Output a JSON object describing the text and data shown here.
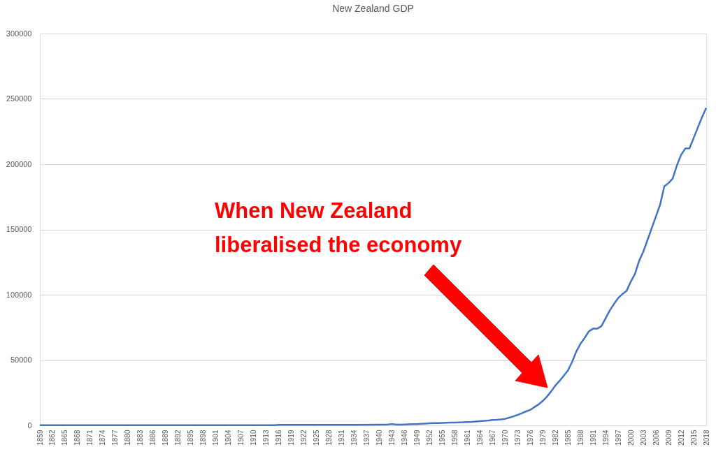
{
  "chart_data": {
    "type": "line",
    "title": "New Zealand GDP",
    "x": [
      1859,
      1865,
      1871,
      1877,
      1883,
      1889,
      1895,
      1901,
      1907,
      1913,
      1915,
      1916,
      1920,
      1925,
      1930,
      1935,
      1940,
      1942,
      1943,
      1944,
      1945,
      1946,
      1947,
      1948,
      1949,
      1950,
      1951,
      1952,
      1953,
      1954,
      1955,
      1956,
      1957,
      1958,
      1959,
      1960,
      1961,
      1962,
      1963,
      1964,
      1965,
      1966,
      1967,
      1968,
      1969,
      1970,
      1971,
      1972,
      1973,
      1974,
      1975,
      1976,
      1977,
      1978,
      1979,
      1980,
      1981,
      1982,
      1983,
      1984,
      1985,
      1986,
      1987,
      1988,
      1989,
      1990,
      1991,
      1992,
      1993,
      1994,
      1995,
      1996,
      1997,
      1998,
      1999,
      2000,
      2001,
      2002,
      2003,
      2004,
      2005,
      2006,
      2007,
      2008,
      2009,
      2010,
      2011,
      2012,
      2013,
      2014,
      2015,
      2016,
      2017,
      2018
    ],
    "series": [
      {
        "color": "#4472c4",
        "values": [
          100,
          100,
          100,
          100,
          100,
          100,
          100,
          100,
          100,
          100,
          100,
          400,
          400,
          400,
          400,
          400,
          600,
          700,
          1000,
          700,
          500,
          700,
          800,
          900,
          1000,
          1200,
          1400,
          1600,
          1700,
          1800,
          1900,
          2000,
          2100,
          2200,
          2300,
          2400,
          2600,
          2700,
          2900,
          3200,
          3500,
          3800,
          4200,
          4300,
          4600,
          5000,
          5900,
          6900,
          8000,
          9300,
          10700,
          11800,
          14000,
          16000,
          18700,
          22000,
          26000,
          30500,
          34000,
          38000,
          42000,
          48500,
          56500,
          62500,
          67000,
          72000,
          74000,
          74000,
          76000,
          82000,
          88000,
          93000,
          97500,
          100500,
          103000,
          110000,
          116000,
          126000,
          133000,
          142000,
          151000,
          160000,
          169000,
          183000,
          185500,
          189000,
          199000,
          207000,
          212000,
          212000,
          220000,
          228000,
          236000,
          243000
        ]
      }
    ],
    "xlim": [
      1859,
      2018
    ],
    "xticks": [
      1859,
      1862,
      1865,
      1868,
      1871,
      1874,
      1877,
      1880,
      1883,
      1886,
      1889,
      1892,
      1895,
      1898,
      1901,
      1904,
      1907,
      1910,
      1913,
      1916,
      1919,
      1922,
      1925,
      1928,
      1931,
      1934,
      1937,
      1940,
      1943,
      1946,
      1949,
      1952,
      1955,
      1958,
      1961,
      1964,
      1967,
      1970,
      1973,
      1976,
      1979,
      1982,
      1985,
      1988,
      1991,
      1994,
      1997,
      2000,
      2003,
      2006,
      2009,
      2012,
      2015,
      2018
    ],
    "ylim": [
      0,
      300000
    ],
    "yticks": [
      0,
      50000,
      100000,
      150000,
      200000,
      250000,
      300000
    ],
    "grid": "y",
    "line_style": "solid",
    "marker": "none",
    "annotations": [
      "When New Zealand\nliberalised the economy"
    ]
  }
}
